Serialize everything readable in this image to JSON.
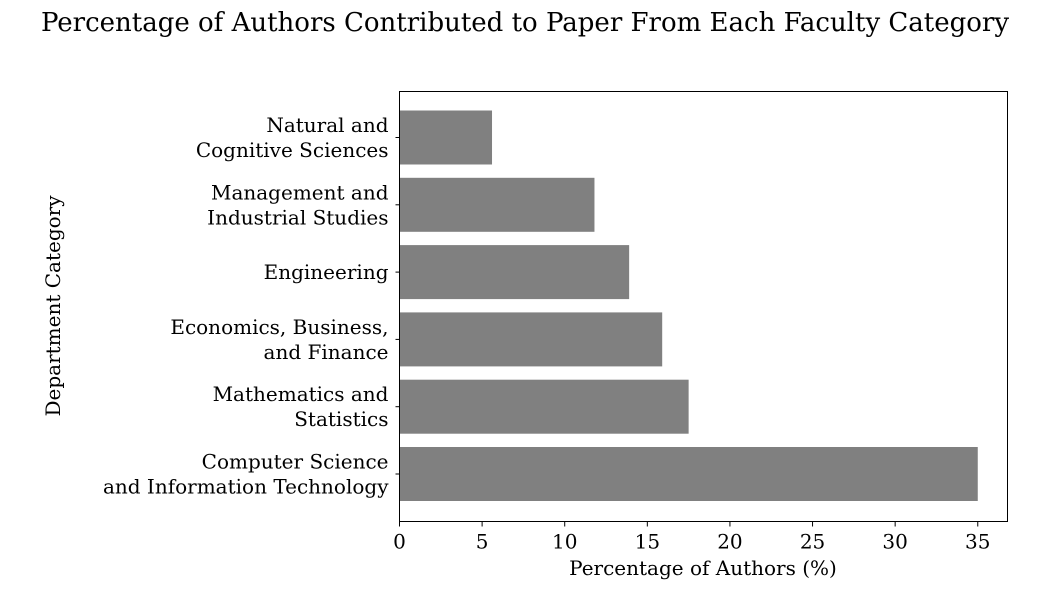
{
  "chart_data": {
    "type": "bar",
    "orientation": "horizontal",
    "title": "Percentage of Authors Contributed to Paper From Each Faculty Category",
    "xlabel": "Percentage of Authors (%)",
    "ylabel": "Department Category",
    "xlim": [
      0,
      36.8
    ],
    "xticks": [
      0,
      5,
      10,
      15,
      20,
      25,
      30,
      35
    ],
    "categories": [
      "Computer Science\nand Information Technology",
      "Mathematics and\nStatistics",
      "Economics, Business,\nand Finance",
      "Engineering",
      "Management and\nIndustrial Studies",
      "Natural and\nCognitive Sciences"
    ],
    "values": [
      35.0,
      17.5,
      15.9,
      13.9,
      11.8,
      5.6
    ],
    "bar_color": "#808080",
    "grid": false,
    "legend": "none"
  }
}
